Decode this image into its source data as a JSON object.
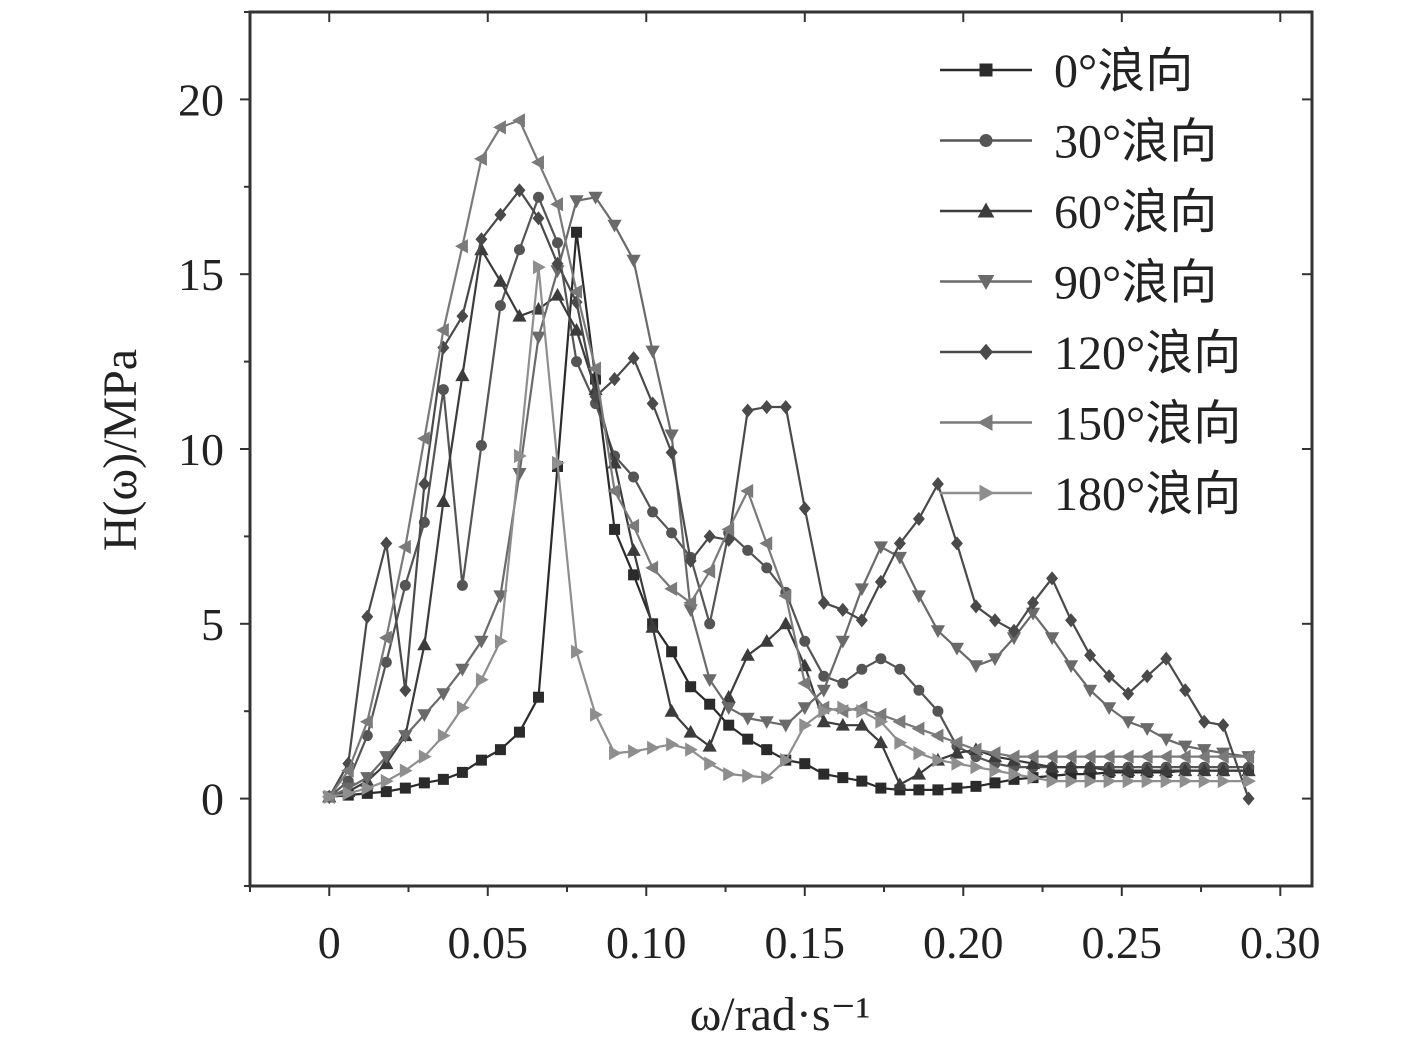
{
  "chart_data": {
    "type": "line",
    "title": "",
    "xlabel": "ω/rad·s⁻¹",
    "ylabel": "H(ω)/MPa",
    "xlim": [
      -0.025,
      0.31
    ],
    "ylim": [
      -2.5,
      22.5
    ],
    "x_ticks": [
      0,
      0.05,
      0.1,
      0.15,
      0.2,
      0.25,
      0.3
    ],
    "x_tick_labels": [
      "0",
      "0.05",
      "0.10",
      "0.15",
      "0.20",
      "0.25",
      "0.30"
    ],
    "y_ticks": [
      0,
      5,
      10,
      15,
      20
    ],
    "y_tick_labels": [
      "0",
      "5",
      "10",
      "15",
      "20"
    ],
    "legend_position": "top-right",
    "series": [
      {
        "name": "0°浪向",
        "marker": "square",
        "color": "#2b2b2b",
        "x": [
          0,
          0.006,
          0.012,
          0.018,
          0.024,
          0.03,
          0.036,
          0.042,
          0.048,
          0.054,
          0.06,
          0.066,
          0.072,
          0.078,
          0.084,
          0.09,
          0.096,
          0.102,
          0.108,
          0.114,
          0.12,
          0.126,
          0.132,
          0.138,
          0.144,
          0.15,
          0.156,
          0.162,
          0.168,
          0.174,
          0.18,
          0.186,
          0.192,
          0.198,
          0.204,
          0.21,
          0.216,
          0.222,
          0.228,
          0.234,
          0.24,
          0.246,
          0.252,
          0.258,
          0.264,
          0.27,
          0.276,
          0.282,
          0.29
        ],
        "y": [
          0.05,
          0.1,
          0.15,
          0.2,
          0.3,
          0.45,
          0.55,
          0.75,
          1.1,
          1.4,
          1.9,
          2.9,
          9.5,
          16.2,
          12,
          7.7,
          6.4,
          5.0,
          4.2,
          3.2,
          2.7,
          2.1,
          1.7,
          1.4,
          1.1,
          1.0,
          0.7,
          0.6,
          0.5,
          0.3,
          0.25,
          0.25,
          0.25,
          0.3,
          0.35,
          0.45,
          0.55,
          0.6,
          0.65,
          0.7,
          0.7,
          0.75,
          0.75,
          0.75,
          0.75,
          0.8,
          0.8,
          0.8,
          0.8
        ]
      },
      {
        "name": "30°浪向",
        "marker": "circle",
        "color": "#555555",
        "x": [
          0,
          0.006,
          0.012,
          0.018,
          0.024,
          0.03,
          0.036,
          0.042,
          0.048,
          0.054,
          0.06,
          0.066,
          0.072,
          0.078,
          0.084,
          0.09,
          0.096,
          0.102,
          0.108,
          0.114,
          0.12,
          0.126,
          0.132,
          0.138,
          0.144,
          0.15,
          0.156,
          0.162,
          0.168,
          0.174,
          0.18,
          0.186,
          0.192,
          0.198,
          0.204,
          0.21,
          0.216,
          0.222,
          0.228,
          0.234,
          0.24,
          0.246,
          0.252,
          0.258,
          0.264,
          0.27,
          0.276,
          0.282,
          0.29
        ],
        "y": [
          0.05,
          0.5,
          1.8,
          3.9,
          6.1,
          7.9,
          11.7,
          6.1,
          10.1,
          14.1,
          15.7,
          17.2,
          15.9,
          12.5,
          11.3,
          9.8,
          9.2,
          8.2,
          7.6,
          6.9,
          5.0,
          7.6,
          7.1,
          6.6,
          5.9,
          4.5,
          3.5,
          3.3,
          3.7,
          4.0,
          3.7,
          3.1,
          2.5,
          1.5,
          1.2,
          1.0,
          0.9,
          0.9,
          0.9,
          0.9,
          0.9,
          0.9,
          0.9,
          0.9,
          0.9,
          0.9,
          0.9,
          0.9,
          0.9
        ]
      },
      {
        "name": "60°浪向",
        "marker": "triangle-up",
        "color": "#3c3c3c",
        "x": [
          0,
          0.006,
          0.012,
          0.018,
          0.024,
          0.03,
          0.036,
          0.042,
          0.048,
          0.054,
          0.06,
          0.066,
          0.072,
          0.078,
          0.084,
          0.09,
          0.096,
          0.102,
          0.108,
          0.114,
          0.12,
          0.126,
          0.132,
          0.138,
          0.144,
          0.15,
          0.156,
          0.162,
          0.168,
          0.174,
          0.18,
          0.186,
          0.192,
          0.198,
          0.204,
          0.21,
          0.216,
          0.222,
          0.228,
          0.234,
          0.24,
          0.246,
          0.252,
          0.258,
          0.264,
          0.27,
          0.276,
          0.282,
          0.29
        ],
        "y": [
          0.05,
          0.2,
          0.5,
          1.0,
          1.8,
          4.4,
          8.5,
          12.1,
          15.7,
          14.8,
          13.8,
          14.0,
          14.4,
          13.4,
          11.7,
          9.6,
          7.1,
          4.9,
          2.5,
          1.9,
          1.5,
          2.9,
          4.1,
          4.5,
          5.0,
          3.8,
          2.2,
          2.1,
          2.1,
          1.6,
          0.4,
          0.7,
          1.1,
          1.3,
          1.4,
          1.2,
          1.1,
          1.0,
          0.9,
          0.9,
          0.9,
          0.8,
          0.8,
          0.8,
          0.8,
          0.8,
          0.8,
          0.8,
          0.8
        ]
      },
      {
        "name": "90°浪向",
        "marker": "triangle-down",
        "color": "#6a6a6a",
        "x": [
          0,
          0.006,
          0.012,
          0.018,
          0.024,
          0.03,
          0.036,
          0.042,
          0.048,
          0.054,
          0.06,
          0.066,
          0.072,
          0.078,
          0.084,
          0.09,
          0.096,
          0.102,
          0.108,
          0.114,
          0.12,
          0.126,
          0.132,
          0.138,
          0.144,
          0.15,
          0.156,
          0.162,
          0.168,
          0.174,
          0.18,
          0.186,
          0.192,
          0.198,
          0.204,
          0.21,
          0.216,
          0.222,
          0.228,
          0.234,
          0.24,
          0.246,
          0.252,
          0.258,
          0.264,
          0.27,
          0.276,
          0.282,
          0.29
        ],
        "y": [
          0.05,
          0.3,
          0.6,
          1.2,
          1.8,
          2.4,
          3.0,
          3.7,
          4.5,
          5.8,
          9.3,
          13.2,
          15.1,
          17.1,
          17.2,
          16.4,
          15.4,
          12.8,
          10.4,
          5.4,
          3.4,
          2.6,
          2.3,
          2.2,
          2.1,
          2.6,
          3.1,
          4.5,
          6.0,
          7.2,
          6.9,
          5.8,
          4.8,
          4.3,
          3.8,
          4.0,
          4.6,
          5.3,
          4.6,
          3.8,
          3.1,
          2.6,
          2.2,
          2.0,
          1.7,
          1.5,
          1.4,
          1.3,
          1.2
        ]
      },
      {
        "name": "120°浪向",
        "marker": "diamond",
        "color": "#4a4a4a",
        "x": [
          0,
          0.006,
          0.012,
          0.018,
          0.024,
          0.03,
          0.036,
          0.042,
          0.048,
          0.054,
          0.06,
          0.066,
          0.072,
          0.078,
          0.084,
          0.09,
          0.096,
          0.102,
          0.108,
          0.114,
          0.12,
          0.126,
          0.132,
          0.138,
          0.144,
          0.15,
          0.156,
          0.162,
          0.168,
          0.174,
          0.18,
          0.186,
          0.192,
          0.198,
          0.204,
          0.21,
          0.216,
          0.222,
          0.228,
          0.234,
          0.24,
          0.246,
          0.252,
          0.258,
          0.264,
          0.27,
          0.276,
          0.282,
          0.29
        ],
        "y": [
          0.05,
          1.0,
          5.2,
          7.3,
          3.1,
          9.0,
          12.9,
          13.8,
          16.0,
          16.7,
          17.4,
          16.6,
          15.3,
          14.2,
          11.5,
          12.0,
          12.6,
          11.3,
          9.9,
          6.8,
          7.5,
          7.4,
          11.1,
          11.2,
          11.2,
          8.3,
          5.6,
          5.4,
          5.1,
          6.2,
          7.3,
          8.0,
          9.0,
          7.3,
          5.5,
          5.1,
          4.8,
          5.6,
          6.3,
          5.1,
          4.1,
          3.5,
          3.0,
          3.5,
          4.0,
          3.1,
          2.2,
          2.1,
          0.0
        ]
      },
      {
        "name": "150°浪向",
        "marker": "triangle-left",
        "color": "#7a7a7a",
        "x": [
          0,
          0.006,
          0.012,
          0.018,
          0.024,
          0.03,
          0.036,
          0.042,
          0.048,
          0.054,
          0.06,
          0.066,
          0.072,
          0.078,
          0.084,
          0.09,
          0.096,
          0.102,
          0.108,
          0.114,
          0.12,
          0.126,
          0.132,
          0.138,
          0.144,
          0.15,
          0.156,
          0.162,
          0.168,
          0.174,
          0.18,
          0.186,
          0.192,
          0.198,
          0.204,
          0.21,
          0.216,
          0.222,
          0.228,
          0.234,
          0.24,
          0.246,
          0.252,
          0.258,
          0.264,
          0.27,
          0.276,
          0.282,
          0.29
        ],
        "y": [
          0.05,
          0.8,
          2.2,
          4.6,
          7.2,
          10.3,
          13.4,
          15.8,
          18.3,
          19.2,
          19.4,
          18.2,
          17.0,
          14.5,
          12.3,
          8.8,
          7.8,
          6.6,
          6.0,
          5.6,
          6.5,
          7.7,
          8.8,
          7.3,
          5.8,
          3.3,
          2.6,
          2.5,
          2.6,
          2.4,
          2.2,
          2.0,
          1.8,
          1.6,
          1.4,
          1.3,
          1.2,
          1.2,
          1.2,
          1.2,
          1.2,
          1.2,
          1.2,
          1.2,
          1.2,
          1.2,
          1.2,
          1.2,
          1.2
        ]
      },
      {
        "name": "180°浪向",
        "marker": "triangle-right",
        "color": "#8e8e8e",
        "x": [
          0,
          0.006,
          0.012,
          0.018,
          0.024,
          0.03,
          0.036,
          0.042,
          0.048,
          0.054,
          0.06,
          0.066,
          0.072,
          0.078,
          0.084,
          0.09,
          0.096,
          0.102,
          0.108,
          0.114,
          0.12,
          0.126,
          0.132,
          0.138,
          0.144,
          0.15,
          0.156,
          0.162,
          0.168,
          0.174,
          0.18,
          0.186,
          0.192,
          0.198,
          0.204,
          0.21,
          0.216,
          0.222,
          0.228,
          0.234,
          0.24,
          0.246,
          0.252,
          0.258,
          0.264,
          0.27,
          0.276,
          0.282,
          0.29
        ],
        "y": [
          0.05,
          0.15,
          0.3,
          0.5,
          0.8,
          1.2,
          1.8,
          2.6,
          3.4,
          4.5,
          9.8,
          15.2,
          9.6,
          4.2,
          2.4,
          1.3,
          1.35,
          1.45,
          1.55,
          1.4,
          1.0,
          0.7,
          0.65,
          0.6,
          1.1,
          2.1,
          2.5,
          2.6,
          2.5,
          2.2,
          1.6,
          1.3,
          1.1,
          1.0,
          0.9,
          0.8,
          0.7,
          0.6,
          0.5,
          0.5,
          0.5,
          0.5,
          0.5,
          0.5,
          0.5,
          0.5,
          0.5,
          0.5,
          0.5
        ]
      }
    ]
  }
}
